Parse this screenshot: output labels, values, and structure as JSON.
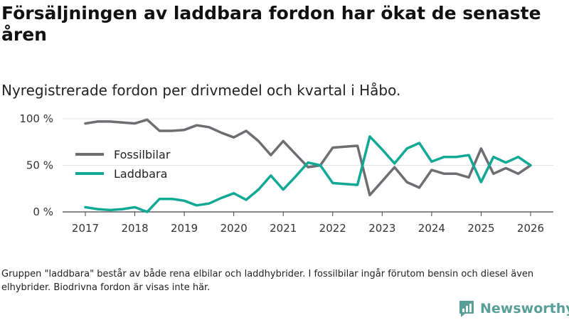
{
  "header": {
    "title": "Försäljningen av laddbara fordon har ökat de senaste åren",
    "subtitle": "Nyregistrerade fordon per drivmedel och kvartal i Håbo."
  },
  "footer": {
    "note": "Gruppen \"laddbara\" består av både rena elbilar och laddhybrider. I fossilbilar ingår förutom bensin och diesel även elhybrider. Biodrivna fordon är visas inte här.",
    "brand": "Newsworthy"
  },
  "colors": {
    "fossil": "#6d6d72",
    "laddbara": "#12a896",
    "brand": "#5a9e98"
  },
  "chart_data": {
    "type": "line",
    "title": "Försäljningen av laddbara fordon har ökat de senaste åren",
    "subtitle": "Nyregistrerade fordon per drivmedel och kvartal i Håbo.",
    "xlabel": "",
    "ylabel": "",
    "xlim": [
      2017,
      2026
    ],
    "ylim": [
      0,
      100
    ],
    "x_ticks": [
      2017,
      2018,
      2019,
      2020,
      2021,
      2022,
      2023,
      2024,
      2025,
      2026
    ],
    "x_tick_labels": [
      "2017",
      "2018",
      "2019",
      "2020",
      "2021",
      "2022",
      "2023",
      "2024",
      "2025",
      "2026"
    ],
    "y_ticks": [
      0,
      50,
      100
    ],
    "y_tick_labels": [
      "0 %",
      "50 %",
      "100 %"
    ],
    "grid": true,
    "legend_position": "left",
    "x": [
      2017,
      2017.25,
      2017.5,
      2017.75,
      2018,
      2018.25,
      2018.5,
      2018.75,
      2019,
      2019.25,
      2019.5,
      2019.75,
      2020,
      2020.25,
      2020.5,
      2020.75,
      2021,
      2021.25,
      2021.5,
      2021.75,
      2022,
      2022.25,
      2022.5,
      2022.75,
      2023,
      2023.25,
      2023.5,
      2023.75,
      2024,
      2024.25,
      2024.5,
      2024.75,
      2025,
      2025.25,
      2025.5,
      2025.75,
      2026
    ],
    "series": [
      {
        "name": "Fossilbilar",
        "color": "#6d6d72",
        "values": [
          95,
          97,
          97,
          96,
          95,
          99,
          87,
          87,
          88,
          93,
          91,
          85,
          80,
          87,
          76,
          61,
          76,
          62,
          48,
          50,
          69,
          70,
          71,
          18,
          33,
          48,
          32,
          26,
          45,
          41,
          41,
          37,
          68,
          41,
          47,
          41,
          50
        ]
      },
      {
        "name": "Laddbara",
        "color": "#12a896",
        "values": [
          5,
          3,
          2,
          3,
          5,
          0,
          14,
          14,
          12,
          7,
          9,
          15,
          20,
          13,
          24,
          39,
          24,
          38,
          53,
          50,
          31,
          30,
          29,
          81,
          67,
          52,
          68,
          74,
          54,
          59,
          59,
          61,
          32,
          59,
          53,
          59,
          50
        ]
      }
    ]
  }
}
